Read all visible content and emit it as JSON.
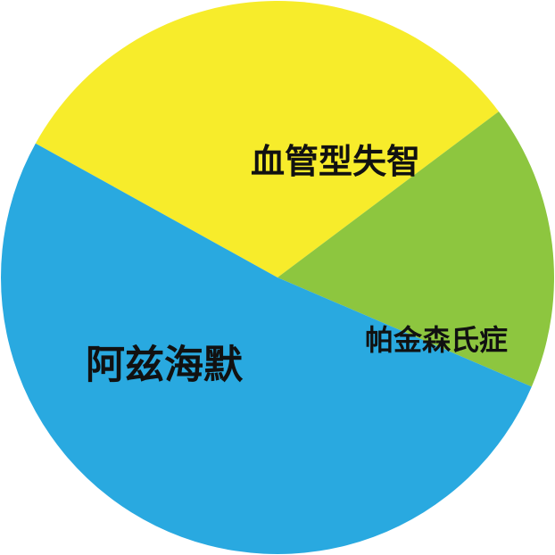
{
  "chart_data": {
    "type": "pie",
    "start_angle_deg": -151,
    "slices": [
      {
        "label": "血管型失智",
        "value": 31.7,
        "color": "#F7EC2B"
      },
      {
        "label": "帕金森氏症",
        "value": 16.7,
        "color": "#8DC63F"
      },
      {
        "label": "阿兹海默",
        "value": 51.6,
        "color": "#29A9E0"
      }
    ]
  }
}
